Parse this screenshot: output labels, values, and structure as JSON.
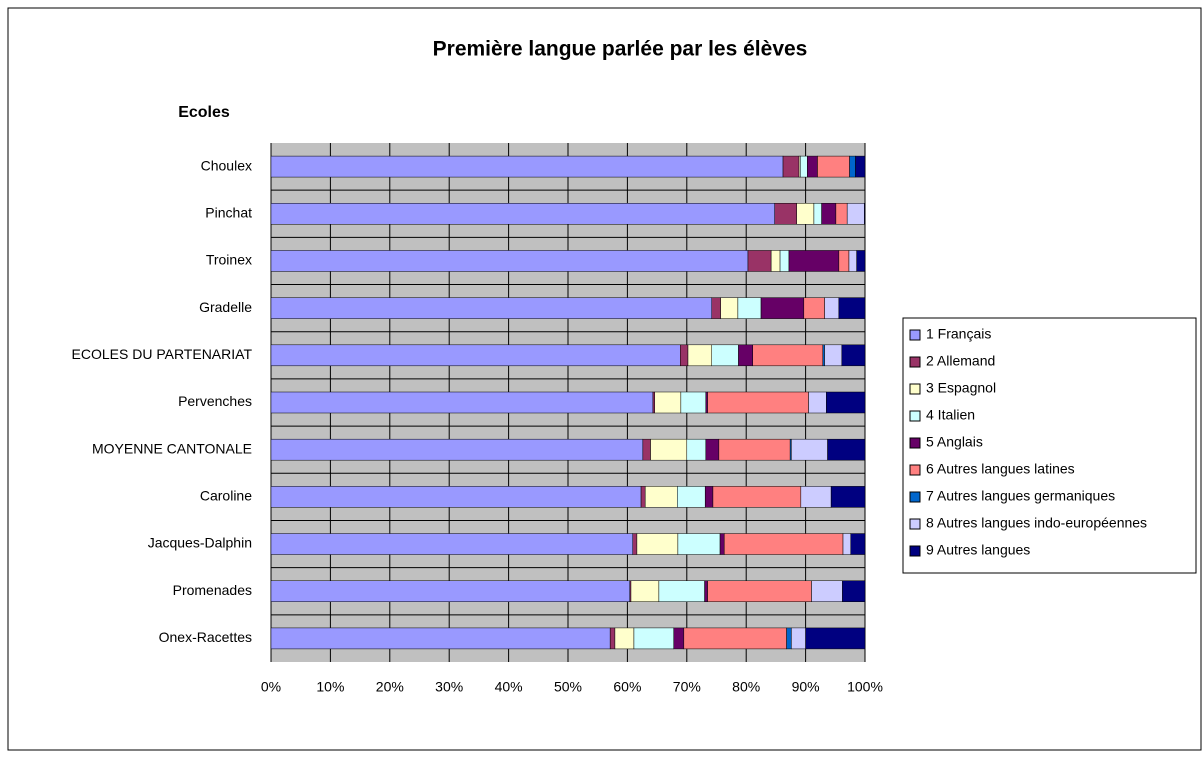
{
  "chart_data": {
    "type": "stacked-bar-horizontal",
    "title": "Première langue parlée par les élèves",
    "y_label": "Ecoles",
    "categories": [
      "Choulex",
      "Pinchat",
      "Troinex",
      "Gradelle",
      "ECOLES DU PARTENARIAT",
      "Pervenches",
      "MOYENNE CANTONALE",
      "Caroline",
      "Jacques-Dalphin",
      "Promenades",
      "Onex-Racettes"
    ],
    "series": [
      {
        "name": "1 Français",
        "color": "#9999ff",
        "values": [
          86.2,
          84.8,
          80.3,
          74.2,
          68.9,
          64.3,
          62.6,
          62.3,
          60.9,
          60.4,
          57.1
        ]
      },
      {
        "name": "2 Allemand",
        "color": "#993366",
        "values": [
          2.7,
          3.7,
          3.9,
          1.5,
          1.3,
          0.3,
          1.3,
          0.7,
          0.7,
          0.2,
          0.8
        ]
      },
      {
        "name": "3 Espagnol",
        "color": "#ffffcc",
        "values": [
          0.2,
          2.9,
          1.5,
          2.9,
          4.0,
          4.4,
          6.1,
          5.4,
          6.9,
          4.7,
          3.2
        ]
      },
      {
        "name": "4 Italien",
        "color": "#ccffff",
        "values": [
          1.2,
          1.3,
          1.5,
          3.9,
          4.5,
          4.2,
          3.2,
          4.7,
          7.1,
          7.7,
          6.7
        ]
      },
      {
        "name": "5 Anglais",
        "color": "#660066",
        "values": [
          1.7,
          2.4,
          8.4,
          7.2,
          2.4,
          0.3,
          2.2,
          1.3,
          0.7,
          0.5,
          1.7
        ]
      },
      {
        "name": "6 Autres langues latines",
        "color": "#ff8080",
        "values": [
          5.4,
          1.9,
          1.7,
          3.5,
          11.8,
          17.0,
          12.0,
          14.8,
          20.0,
          17.5,
          17.3
        ]
      },
      {
        "name": "7 Autres langues germaniques",
        "color": "#0066cc",
        "values": [
          1.0,
          0,
          0,
          0,
          0.3,
          0,
          0.2,
          0,
          0,
          0,
          0.8
        ]
      },
      {
        "name": "8 Autres langues indo-européennes",
        "color": "#ccccff",
        "values": [
          0,
          2.9,
          1.3,
          2.4,
          2.9,
          3.0,
          6.1,
          5.1,
          1.3,
          5.2,
          2.4
        ]
      },
      {
        "name": "9 Autres langues",
        "color": "#000080",
        "values": [
          1.6,
          0.1,
          1.4,
          4.4,
          3.9,
          6.5,
          6.3,
          5.7,
          2.4,
          3.8,
          10.0
        ]
      }
    ],
    "xlim": [
      0,
      100
    ],
    "xticks": [
      {
        "value": 0,
        "label": "0%"
      },
      {
        "value": 10,
        "label": "10%"
      },
      {
        "value": 20,
        "label": "20%"
      },
      {
        "value": 30,
        "label": "30%"
      },
      {
        "value": 40,
        "label": "40%"
      },
      {
        "value": 50,
        "label": "50%"
      },
      {
        "value": 60,
        "label": "60%"
      },
      {
        "value": 70,
        "label": "70%"
      },
      {
        "value": 80,
        "label": "80%"
      },
      {
        "value": 90,
        "label": "90%"
      },
      {
        "value": 100,
        "label": "100%"
      }
    ],
    "grid": true,
    "legend": "right"
  }
}
